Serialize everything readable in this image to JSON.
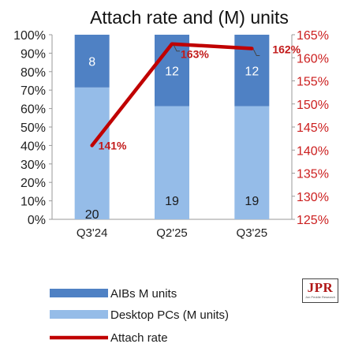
{
  "chart_data": {
    "type": "bar",
    "title": "Attach rate and (M) units",
    "categories": [
      "Q3'24",
      "Q2'25",
      "Q3'25"
    ],
    "series": [
      {
        "name": "Desktop PCs (M units)",
        "values": [
          20,
          19,
          19
        ],
        "color": "#95bce8"
      },
      {
        "name": "AIBs M units",
        "values": [
          8,
          12,
          12
        ],
        "color": "#4f81c4"
      },
      {
        "name": "Attach rate",
        "type": "line",
        "axis": "right",
        "values": [
          141,
          163,
          162
        ],
        "labels": [
          "141%",
          "163%",
          "162%"
        ],
        "color": "#c00000"
      }
    ],
    "stacked": "percent",
    "ylim": [
      0,
      100
    ],
    "yticks": [
      "0%",
      "10%",
      "20%",
      "30%",
      "40%",
      "50%",
      "60%",
      "70%",
      "80%",
      "90%",
      "100%"
    ],
    "y2lim": [
      125,
      165
    ],
    "y2ticks": [
      "125%",
      "130%",
      "135%",
      "140%",
      "145%",
      "150%",
      "155%",
      "160%",
      "165%"
    ],
    "grid": false,
    "legend": "bottom-left"
  },
  "logo": {
    "text": "JPR",
    "subtext": "Jon Peddie Research"
  }
}
